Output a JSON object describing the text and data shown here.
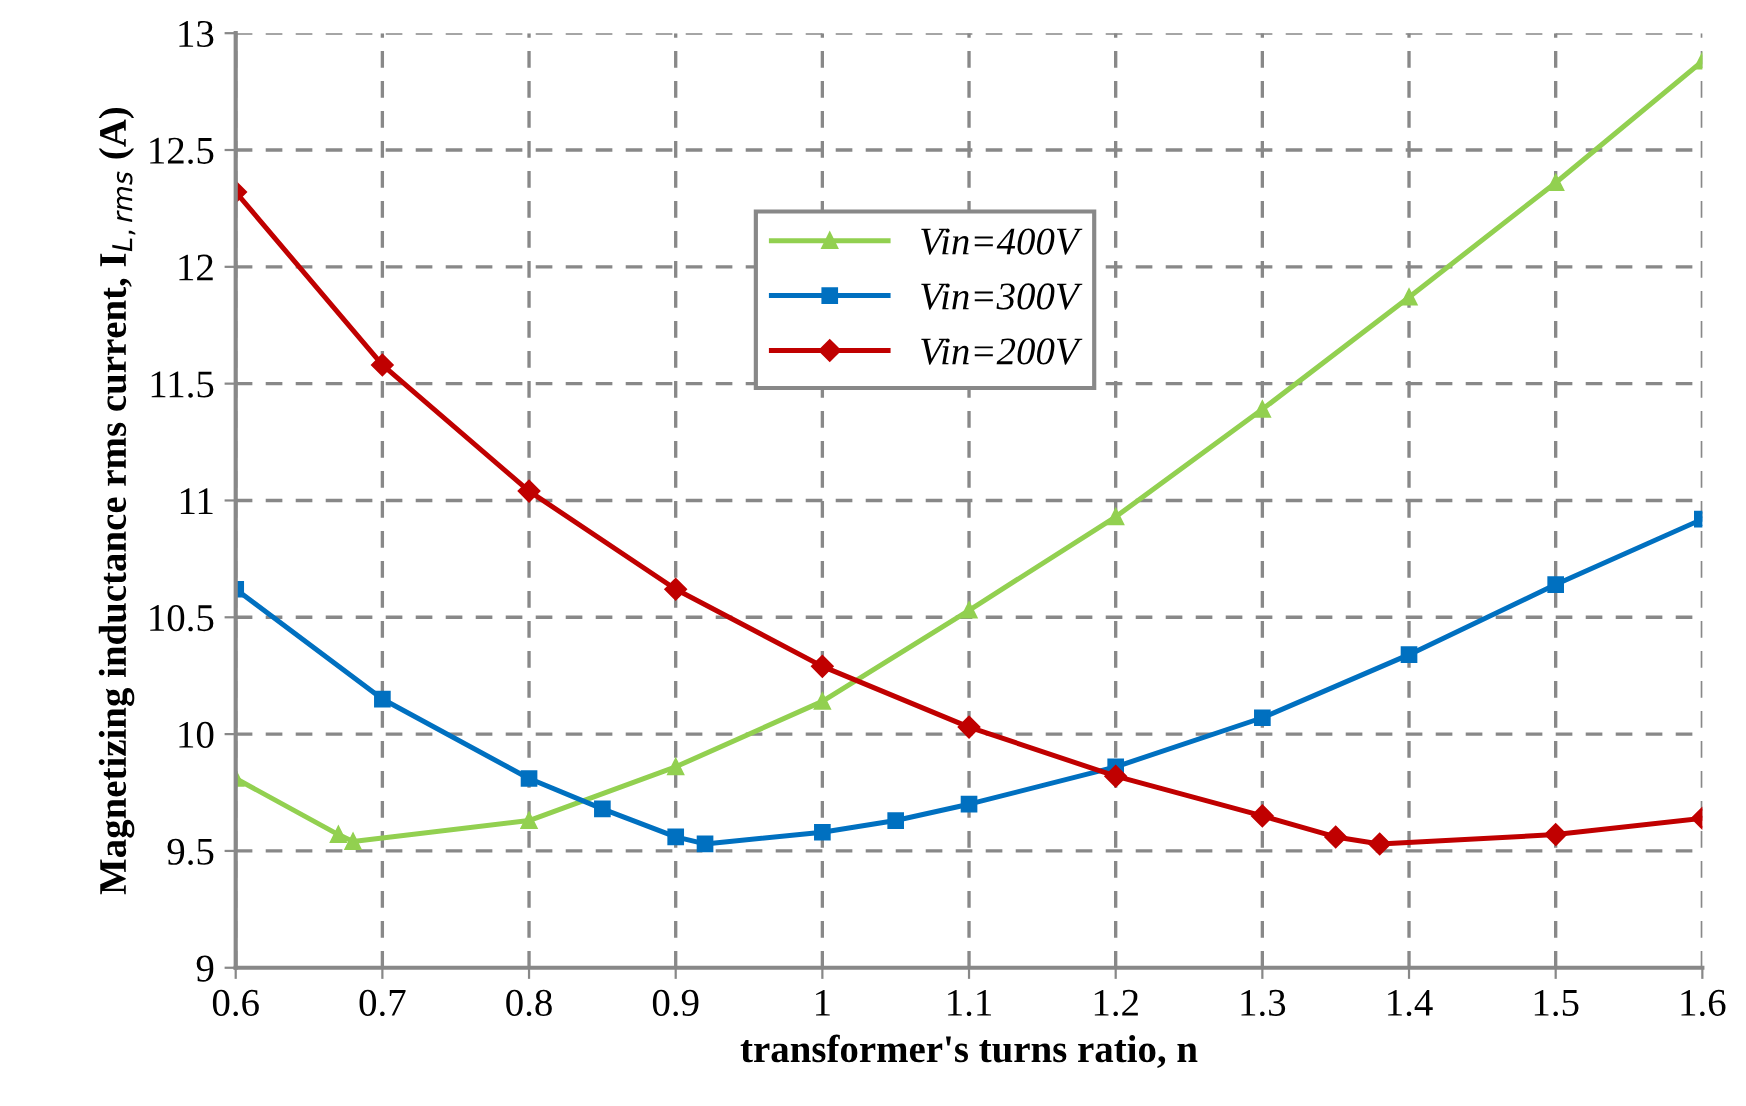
{
  "chart_data": {
    "type": "line",
    "xlabel": "transformer's turns ratio, n",
    "ylabel": "Magnetizing inductance rms current, I$_{L,rms}$ (A)",
    "xlim": [
      0.6,
      1.6
    ],
    "xticks": [
      0.6,
      0.7,
      0.8,
      0.9,
      1,
      1.1,
      1.2,
      1.3,
      1.4,
      1.5,
      1.6
    ],
    "ylim": [
      9,
      13
    ],
    "yticks": [
      9,
      9.5,
      10,
      10.5,
      11,
      11.5,
      12,
      12.5,
      13
    ],
    "grid": true,
    "legend": "top",
    "line_style": "solid",
    "series": [
      {
        "name": "Vin=400V",
        "color": "#92d050",
        "marker": "triangle",
        "x": [
          0.6,
          0.67,
          0.68,
          0.8,
          0.9,
          1.0,
          1.1,
          1.2,
          1.3,
          1.4,
          1.5,
          1.6
        ],
        "values": [
          9.81,
          9.57,
          9.54,
          9.63,
          9.86,
          10.14,
          10.53,
          10.93,
          11.39,
          11.87,
          12.36,
          12.88
        ]
      },
      {
        "name": "Vin=300V",
        "color": "#0070c0",
        "marker": "square",
        "x": [
          0.6,
          0.7,
          0.8,
          0.85,
          0.9,
          0.92,
          1.0,
          1.05,
          1.1,
          1.2,
          1.3,
          1.4,
          1.5,
          1.6
        ],
        "values": [
          10.62,
          10.15,
          9.81,
          9.68,
          9.56,
          9.53,
          9.58,
          9.63,
          9.7,
          9.86,
          10.07,
          10.34,
          10.64,
          10.92
        ]
      },
      {
        "name": "Vin=200V",
        "color": "#c00000",
        "marker": "diamond",
        "x": [
          0.6,
          0.7,
          0.8,
          0.9,
          1.0,
          1.1,
          1.2,
          1.3,
          1.35,
          1.38,
          1.5,
          1.6
        ],
        "values": [
          12.32,
          11.58,
          11.04,
          10.62,
          10.29,
          10.03,
          9.82,
          9.65,
          9.56,
          9.53,
          9.57,
          9.64
        ]
      }
    ]
  }
}
